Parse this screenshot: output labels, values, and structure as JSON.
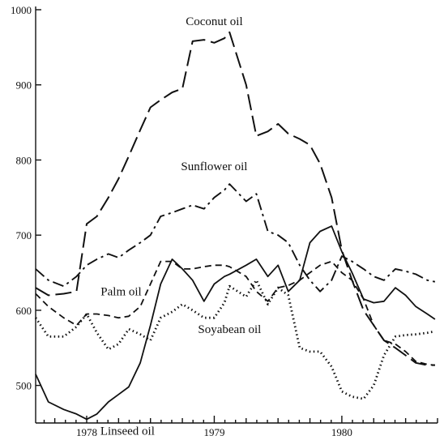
{
  "chart_data": {
    "type": "line",
    "title": "",
    "xlabel": "",
    "ylabel": "",
    "ylim": [
      450,
      1000
    ],
    "xlim": [
      1977.6,
      1980.75
    ],
    "y_ticks": [
      500,
      600,
      700,
      800,
      900,
      1000
    ],
    "x_ticks": [
      {
        "value": 1978,
        "label": "1978"
      },
      {
        "value": 1979,
        "label": "1979"
      },
      {
        "value": 1980,
        "label": "1980"
      }
    ],
    "grid": false,
    "legend": "none",
    "series": [
      {
        "name": "Coconut oil",
        "style": "long-dash",
        "x": [
          1977.6,
          1977.7,
          1977.82,
          1977.92,
          1978.0,
          1978.08,
          1978.17,
          1978.25,
          1978.33,
          1978.42,
          1978.5,
          1978.58,
          1978.67,
          1978.75,
          1978.83,
          1978.92,
          1979.0,
          1979.08,
          1979.12,
          1979.25,
          1979.33,
          1979.42,
          1979.5,
          1979.58,
          1979.67,
          1979.75,
          1979.83,
          1979.92,
          1980.0,
          1980.08,
          1980.17,
          1980.25,
          1980.33,
          1980.42,
          1980.5,
          1980.58,
          1980.67,
          1980.73
        ],
        "y": [
          630,
          620,
          622,
          625,
          715,
          725,
          750,
          775,
          805,
          840,
          870,
          880,
          890,
          895,
          958,
          960,
          956,
          962,
          970,
          900,
          832,
          838,
          848,
          835,
          828,
          820,
          795,
          750,
          680,
          640,
          600,
          580,
          560,
          550,
          540,
          530,
          527,
          527
        ]
      },
      {
        "name": "Sunflower oil",
        "style": "dash-dot",
        "x": [
          1977.6,
          1977.7,
          1977.82,
          1977.92,
          1978.0,
          1978.08,
          1978.17,
          1978.25,
          1978.33,
          1978.42,
          1978.5,
          1978.58,
          1978.67,
          1978.75,
          1978.83,
          1978.92,
          1979.0,
          1979.08,
          1979.12,
          1979.25,
          1979.33,
          1979.42,
          1979.5,
          1979.58,
          1979.67,
          1979.75,
          1979.83,
          1979.92,
          1980.0,
          1980.08,
          1980.17,
          1980.25,
          1980.33,
          1980.42,
          1980.5,
          1980.58,
          1980.67,
          1980.73
        ],
        "y": [
          655,
          640,
          632,
          645,
          660,
          668,
          675,
          670,
          680,
          690,
          700,
          725,
          730,
          735,
          740,
          735,
          750,
          760,
          768,
          745,
          755,
          705,
          700,
          690,
          660,
          640,
          625,
          640,
          672,
          665,
          655,
          645,
          640,
          655,
          652,
          648,
          640,
          638
        ]
      },
      {
        "name": "Palm oil",
        "style": "short-dash",
        "x": [
          1977.6,
          1977.7,
          1977.82,
          1977.92,
          1978.0,
          1978.08,
          1978.17,
          1978.25,
          1978.33,
          1978.42,
          1978.5,
          1978.58,
          1978.67,
          1978.75,
          1978.83,
          1978.92,
          1979.0,
          1979.08,
          1979.12,
          1979.25,
          1979.33,
          1979.42,
          1979.5,
          1979.58,
          1979.67,
          1979.75,
          1979.83,
          1979.92,
          1980.0,
          1980.08,
          1980.17,
          1980.25,
          1980.33,
          1980.42,
          1980.5,
          1980.58,
          1980.67,
          1980.73
        ],
        "y": [
          622,
          605,
          590,
          580,
          595,
          595,
          593,
          590,
          592,
          605,
          635,
          665,
          665,
          655,
          655,
          658,
          660,
          660,
          658,
          645,
          625,
          612,
          630,
          633,
          640,
          650,
          660,
          665,
          650,
          640,
          615,
          580,
          560,
          555,
          545,
          532,
          528,
          527
        ]
      },
      {
        "name": "Soyabean oil",
        "style": "dotted",
        "x": [
          1977.6,
          1977.7,
          1977.82,
          1977.92,
          1978.0,
          1978.08,
          1978.17,
          1978.25,
          1978.33,
          1978.42,
          1978.5,
          1978.58,
          1978.67,
          1978.75,
          1978.83,
          1978.92,
          1979.0,
          1979.08,
          1979.12,
          1979.25,
          1979.33,
          1979.42,
          1979.5,
          1979.58,
          1979.67,
          1979.75,
          1979.83,
          1979.92,
          1980.0,
          1980.08,
          1980.17,
          1980.25,
          1980.33,
          1980.42,
          1980.5,
          1980.58,
          1980.67,
          1980.73
        ],
        "y": [
          590,
          565,
          565,
          578,
          595,
          570,
          548,
          555,
          575,
          568,
          560,
          590,
          598,
          608,
          600,
          590,
          590,
          610,
          632,
          618,
          640,
          608,
          630,
          620,
          550,
          545,
          545,
          525,
          492,
          485,
          482,
          500,
          540,
          565,
          567,
          568,
          570,
          572
        ]
      },
      {
        "name": "Linseed oil",
        "style": "solid",
        "x": [
          1977.6,
          1977.7,
          1977.82,
          1977.92,
          1978.0,
          1978.08,
          1978.17,
          1978.25,
          1978.33,
          1978.42,
          1978.5,
          1978.58,
          1978.67,
          1978.75,
          1978.83,
          1978.92,
          1979.0,
          1979.08,
          1979.12,
          1979.25,
          1979.33,
          1979.42,
          1979.5,
          1979.58,
          1979.67,
          1979.75,
          1979.83,
          1979.92,
          1980.0,
          1980.08,
          1980.17,
          1980.25,
          1980.33,
          1980.42,
          1980.5,
          1980.58,
          1980.67,
          1980.73
        ],
        "y": [
          515,
          478,
          468,
          462,
          455,
          462,
          478,
          488,
          498,
          530,
          580,
          635,
          668,
          655,
          640,
          612,
          635,
          645,
          648,
          660,
          668,
          645,
          660,
          625,
          640,
          690,
          705,
          712,
          678,
          650,
          615,
          610,
          612,
          630,
          620,
          605,
          595,
          588
        ]
      }
    ],
    "annotations": [
      {
        "text": "Coconut oil",
        "x": 1979.0,
        "y": 985
      },
      {
        "text": "Sunflower oil",
        "x": 1979.0,
        "y": 792
      },
      {
        "text": "Palm oil",
        "x": 1978.27,
        "y": 625
      },
      {
        "text": "Soyabean oil",
        "x": 1979.12,
        "y": 575
      },
      {
        "text": "Linseed oil",
        "x": 1978.32,
        "y": 440
      }
    ]
  }
}
